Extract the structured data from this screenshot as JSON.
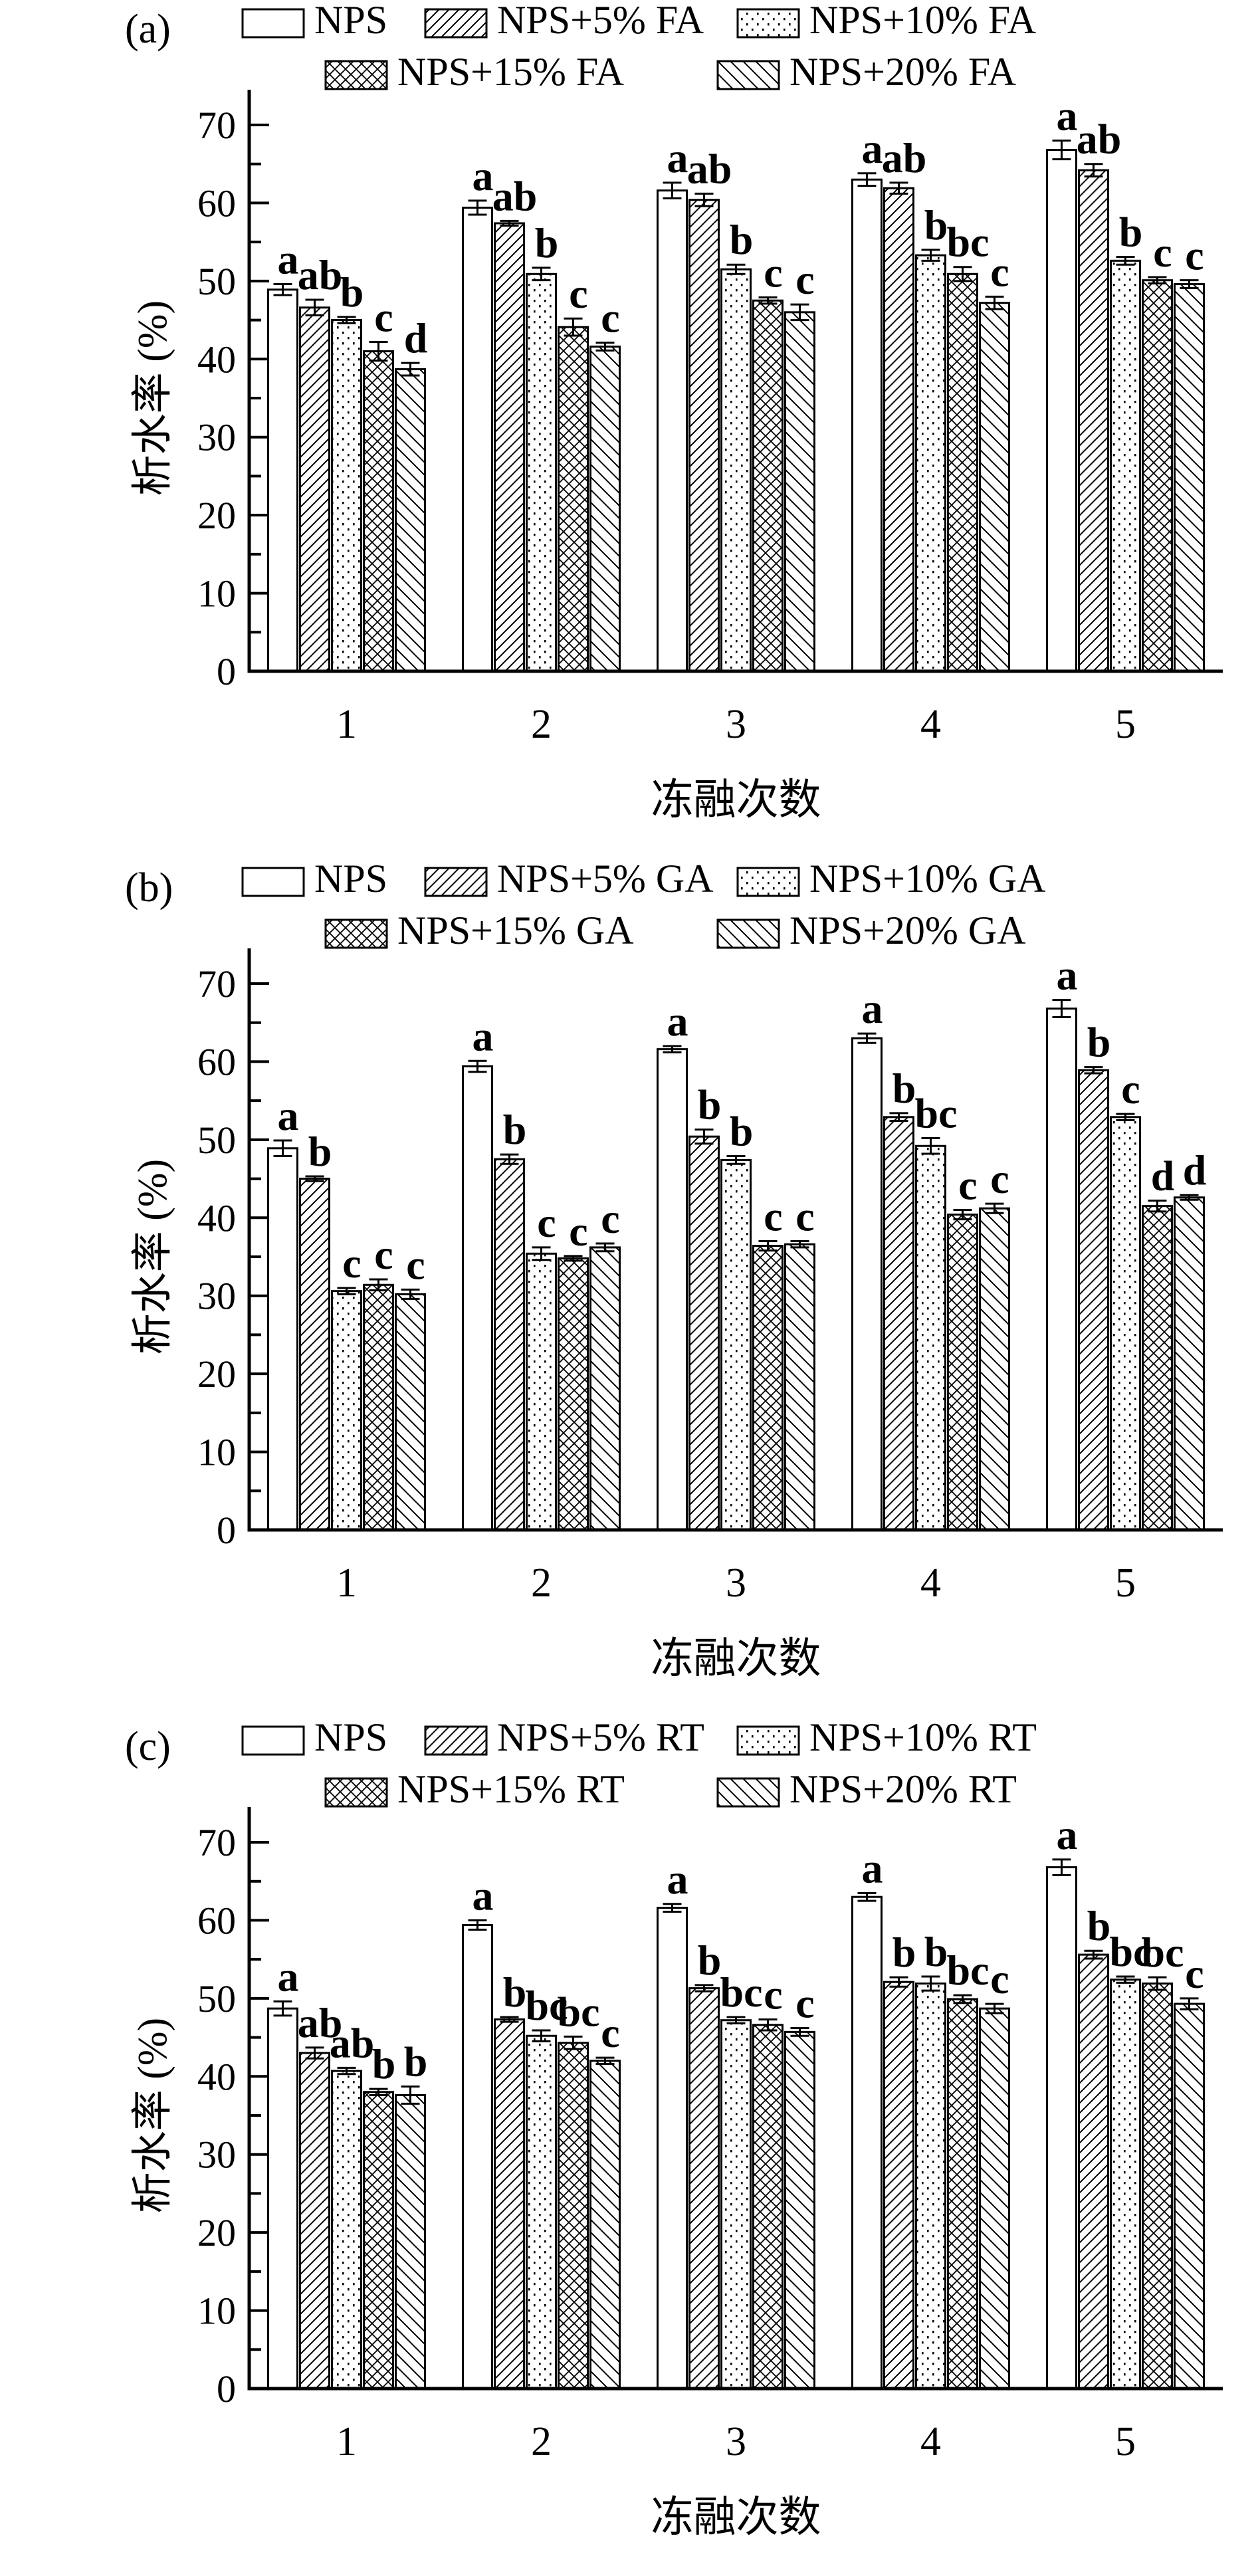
{
  "figure": {
    "background": "#ffffff",
    "ink_color": "#000000",
    "ylabel": "析水率 (%)",
    "xlabel": "冻融次数",
    "categories": [
      "1",
      "2",
      "3",
      "4",
      "5"
    ],
    "y_ticks": [
      0,
      10,
      20,
      30,
      40,
      50,
      60,
      70
    ],
    "ylim": [
      0,
      70
    ]
  },
  "chart_data": [
    {
      "type": "bar",
      "panel_label": "(a)",
      "xlabel": "冻融次数",
      "ylabel": "析水率 (%)",
      "categories": [
        "1",
        "2",
        "3",
        "4",
        "5"
      ],
      "ylim": [
        0,
        70
      ],
      "y_ticks": [
        0,
        10,
        20,
        30,
        40,
        50,
        60,
        70
      ],
      "grid": false,
      "legend_position": "top",
      "series": [
        {
          "name": "NPS",
          "pattern": "plain",
          "values": [
            48.9,
            59.4,
            61.6,
            63.0,
            66.8
          ],
          "errors": [
            0.7,
            0.9,
            1.0,
            0.8,
            1.2
          ],
          "sig_letters": [
            "a",
            "a",
            "a",
            "a",
            "a"
          ]
        },
        {
          "name": "NPS+5% FA",
          "pattern": "hatch-up",
          "values": [
            46.6,
            57.4,
            60.4,
            61.9,
            64.2
          ],
          "errors": [
            1.0,
            0.3,
            0.8,
            0.7,
            0.8
          ],
          "sig_letters": [
            "ab",
            "ab",
            "ab",
            "ab",
            "ab"
          ]
        },
        {
          "name": "NPS+10% FA",
          "pattern": "dots",
          "values": [
            45.0,
            50.9,
            51.5,
            53.3,
            52.6
          ],
          "errors": [
            0.4,
            0.8,
            0.6,
            0.7,
            0.5
          ],
          "sig_letters": [
            "b",
            "b",
            "b",
            "b",
            "b"
          ]
        },
        {
          "name": "NPS+15% FA",
          "pattern": "crosshatch",
          "values": [
            41.0,
            44.1,
            47.5,
            50.9,
            50.1
          ],
          "errors": [
            1.2,
            1.1,
            0.4,
            0.9,
            0.4
          ],
          "sig_letters": [
            "c",
            "c",
            "c",
            "bc",
            "c"
          ]
        },
        {
          "name": "NPS+20% FA",
          "pattern": "hatch-down",
          "values": [
            38.7,
            41.6,
            46.0,
            47.2,
            49.6
          ],
          "errors": [
            0.8,
            0.5,
            1.0,
            0.8,
            0.5
          ],
          "sig_letters": [
            "d",
            "c",
            "c",
            "c",
            "c"
          ]
        }
      ]
    },
    {
      "type": "bar",
      "panel_label": "(b)",
      "xlabel": "冻融次数",
      "ylabel": "析水率 (%)",
      "categories": [
        "1",
        "2",
        "3",
        "4",
        "5"
      ],
      "ylim": [
        0,
        70
      ],
      "y_ticks": [
        0,
        10,
        20,
        30,
        40,
        50,
        60,
        70
      ],
      "grid": false,
      "legend_position": "top",
      "series": [
        {
          "name": "NPS",
          "pattern": "plain",
          "values": [
            48.9,
            59.4,
            61.6,
            63.0,
            66.8
          ],
          "errors": [
            1.0,
            0.7,
            0.4,
            0.6,
            1.1
          ],
          "sig_letters": [
            "a",
            "a",
            "a",
            "a",
            "a"
          ]
        },
        {
          "name": "NPS+5% GA",
          "pattern": "hatch-up",
          "values": [
            45.0,
            47.5,
            50.4,
            52.9,
            58.9
          ],
          "errors": [
            0.3,
            0.6,
            0.9,
            0.5,
            0.4
          ],
          "sig_letters": [
            "b",
            "b",
            "b",
            "b",
            "b"
          ]
        },
        {
          "name": "NPS+10% GA",
          "pattern": "dots",
          "values": [
            30.6,
            35.4,
            47.4,
            49.2,
            52.9
          ],
          "errors": [
            0.4,
            0.8,
            0.5,
            1.0,
            0.4
          ],
          "sig_letters": [
            "c",
            "c",
            "b",
            "bc",
            "c"
          ]
        },
        {
          "name": "NPS+15% GA",
          "pattern": "crosshatch",
          "values": [
            31.4,
            34.8,
            36.4,
            40.4,
            41.5
          ],
          "errors": [
            0.7,
            0.3,
            0.6,
            0.6,
            0.7
          ],
          "sig_letters": [
            "c",
            "c",
            "c",
            "c",
            "d"
          ]
        },
        {
          "name": "NPS+20% GA",
          "pattern": "hatch-down",
          "values": [
            30.2,
            36.2,
            36.6,
            41.2,
            42.6
          ],
          "errors": [
            0.6,
            0.5,
            0.4,
            0.6,
            0.3
          ],
          "sig_letters": [
            "c",
            "c",
            "c",
            "c",
            "d"
          ]
        }
      ]
    },
    {
      "type": "bar",
      "panel_label": "(c)",
      "xlabel": "冻融次数",
      "ylabel": "析水率 (%)",
      "categories": [
        "1",
        "2",
        "3",
        "4",
        "5"
      ],
      "ylim": [
        0,
        70
      ],
      "y_ticks": [
        0,
        10,
        20,
        30,
        40,
        50,
        60,
        70
      ],
      "grid": false,
      "legend_position": "top",
      "series": [
        {
          "name": "NPS",
          "pattern": "plain",
          "values": [
            48.7,
            59.4,
            61.6,
            63.0,
            66.8
          ],
          "errors": [
            0.9,
            0.6,
            0.5,
            0.5,
            1.0
          ],
          "sig_letters": [
            "a",
            "a",
            "a",
            "a",
            "a"
          ]
        },
        {
          "name": "NPS+5% RT",
          "pattern": "hatch-up",
          "values": [
            43.0,
            47.3,
            51.3,
            52.1,
            55.6
          ],
          "errors": [
            0.7,
            0.3,
            0.4,
            0.6,
            0.5
          ],
          "sig_letters": [
            "ab",
            "b",
            "b",
            "b",
            "b"
          ]
        },
        {
          "name": "NPS+10% RT",
          "pattern": "dots",
          "values": [
            40.7,
            45.2,
            47.2,
            51.9,
            52.4
          ],
          "errors": [
            0.4,
            0.7,
            0.4,
            0.9,
            0.4
          ],
          "sig_letters": [
            "ab",
            "bc",
            "bc",
            "b",
            "bc"
          ]
        },
        {
          "name": "NPS+15% RT",
          "pattern": "crosshatch",
          "values": [
            38.0,
            44.3,
            46.6,
            49.9,
            51.9
          ],
          "errors": [
            0.4,
            0.8,
            0.7,
            0.5,
            0.8
          ],
          "sig_letters": [
            "b",
            "bc",
            "c",
            "bc",
            "bc"
          ]
        },
        {
          "name": "NPS+20% RT",
          "pattern": "hatch-down",
          "values": [
            37.6,
            42.0,
            45.7,
            48.7,
            49.3
          ],
          "errors": [
            1.1,
            0.4,
            0.5,
            0.6,
            0.7
          ],
          "sig_letters": [
            "b",
            "c",
            "c",
            "c",
            "c"
          ]
        }
      ]
    }
  ]
}
